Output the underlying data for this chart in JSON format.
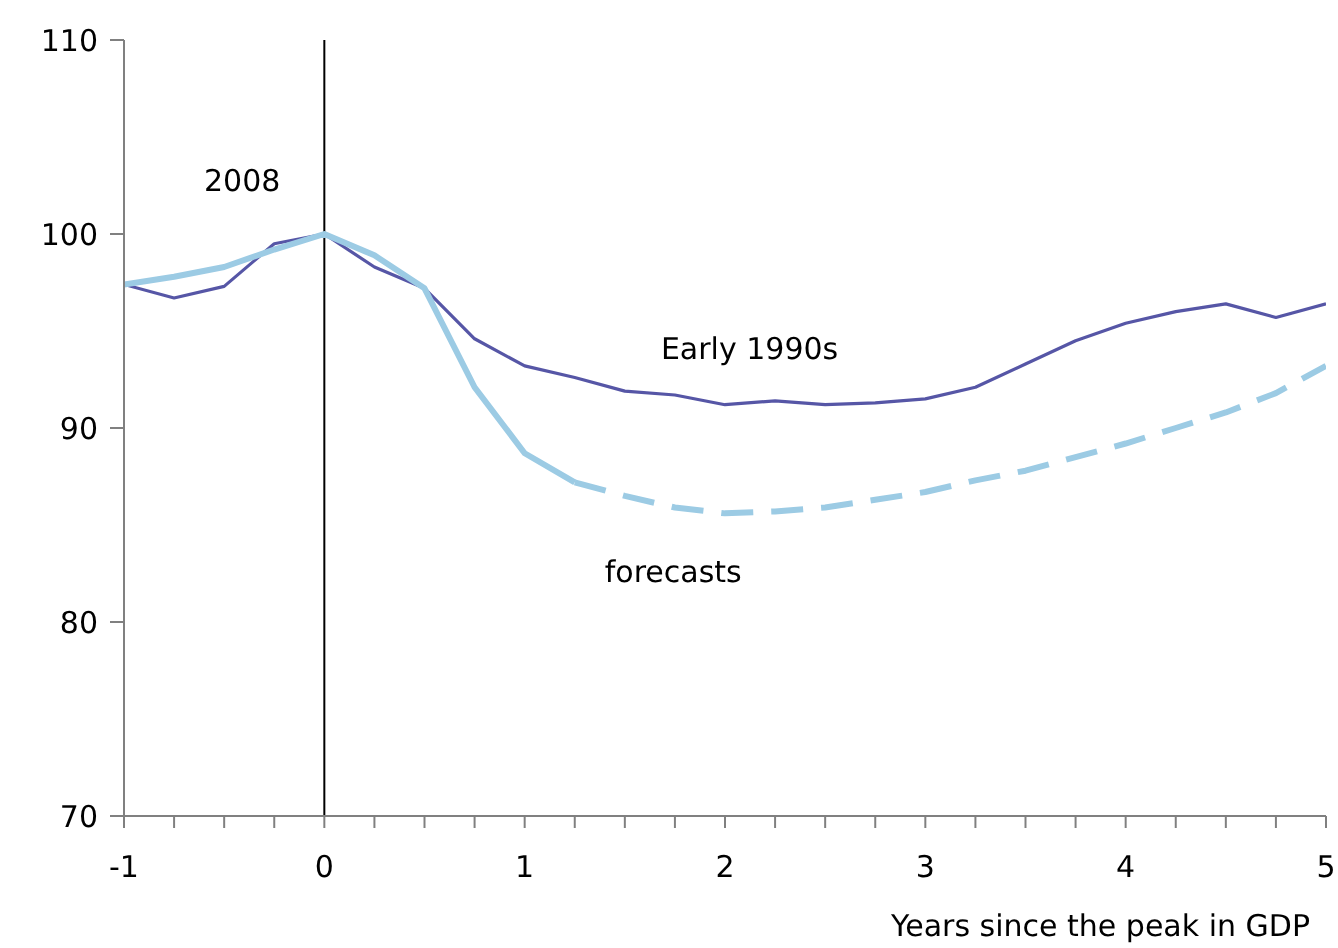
{
  "chart_data": {
    "type": "line",
    "xlabel": "Years since the peak in GDP",
    "x": [
      -1,
      -0.75,
      -0.5,
      -0.25,
      0,
      0.25,
      0.5,
      0.75,
      1,
      1.25,
      1.5,
      1.75,
      2,
      2.25,
      2.5,
      2.75,
      3,
      3.25,
      3.5,
      3.75,
      4,
      4.25,
      4.5,
      4.75,
      5
    ],
    "series": [
      {
        "name": "Early 1990s",
        "color": "#5656a6",
        "values": [
          97.4,
          96.7,
          97.3,
          99.5,
          100,
          98.3,
          97.2,
          94.6,
          93.2,
          92.6,
          91.9,
          91.7,
          91.2,
          91.4,
          91.2,
          91.3,
          91.5,
          92.1,
          93.3,
          94.5,
          95.4,
          96.0,
          96.4,
          95.7,
          96.4
        ]
      },
      {
        "name": "2008",
        "color": "#9ccbe4",
        "line_style": "solid",
        "x": [
          -1,
          -0.75,
          -0.5,
          -0.25,
          0,
          0.25,
          0.5,
          0.75,
          1,
          1.25
        ],
        "values": [
          97.4,
          97.8,
          98.3,
          99.2,
          100,
          98.9,
          97.2,
          92.1,
          88.7,
          87.2
        ]
      },
      {
        "name": "forecasts",
        "color": "#9ccbe4",
        "line_style": "dashed",
        "x": [
          1.25,
          1.5,
          1.75,
          2,
          2.25,
          2.5,
          2.75,
          3,
          3.25,
          3.5,
          3.75,
          4,
          4.25,
          4.5,
          4.75,
          5
        ],
        "values": [
          87.2,
          86.5,
          85.9,
          85.6,
          85.7,
          85.9,
          86.3,
          86.7,
          87.3,
          87.8,
          88.5,
          89.2,
          90.0,
          90.8,
          91.8,
          93.2
        ]
      }
    ],
    "xlim": [
      -1,
      5
    ],
    "xticks": [
      -1,
      {
        "value": -0.75,
        "label": null
      },
      {
        "value": -0.5,
        "label": null
      },
      {
        "value": -0.25,
        "label": null
      },
      0,
      {
        "value": 0.25,
        "label": null
      },
      {
        "value": 0.5,
        "label": null
      },
      {
        "value": 0.75,
        "label": null
      },
      1,
      {
        "value": 1.25,
        "label": null
      },
      {
        "value": 1.5,
        "label": null
      },
      {
        "value": 1.75,
        "label": null
      },
      2,
      {
        "value": 2.25,
        "label": null
      },
      {
        "value": 2.5,
        "label": null
      },
      {
        "value": 2.75,
        "label": null
      },
      3,
      {
        "value": 3.25,
        "label": null
      },
      {
        "value": 3.5,
        "label": null
      },
      {
        "value": 3.75,
        "label": null
      },
      4,
      {
        "value": 4.25,
        "label": null
      },
      {
        "value": 4.5,
        "label": null
      },
      {
        "value": 4.75,
        "label": null
      },
      5
    ],
    "ylim": [
      70,
      110
    ],
    "yticks": [
      70,
      80,
      90,
      100,
      110
    ],
    "ref_lines": [
      {
        "axis": "x",
        "value": 0,
        "color": "#000000"
      }
    ],
    "grid": false,
    "legend": false,
    "marker": "none",
    "line_style": "solid"
  }
}
